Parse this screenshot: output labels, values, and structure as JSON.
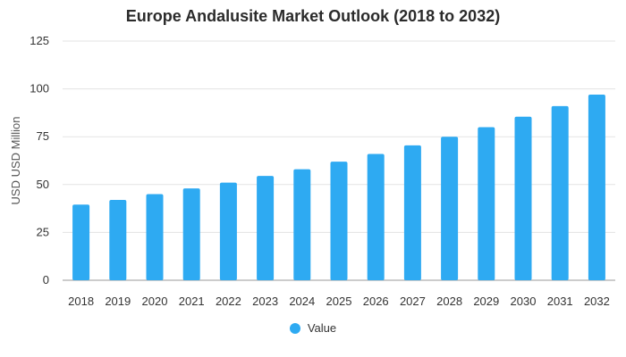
{
  "chart_data": {
    "type": "bar",
    "title": "Europe Andalusite Market Outlook (2018 to 2032)",
    "xlabel": "",
    "ylabel": "USD USD Million",
    "categories": [
      "2018",
      "2019",
      "2020",
      "2021",
      "2022",
      "2023",
      "2024",
      "2025",
      "2026",
      "2027",
      "2028",
      "2029",
      "2030",
      "2031",
      "2032"
    ],
    "series": [
      {
        "name": "Value",
        "values": [
          39.5,
          42,
          45,
          48,
          51,
          54.5,
          58,
          62,
          66,
          70.5,
          75,
          80,
          85.5,
          91,
          97
        ],
        "color": "#2eaaf2"
      }
    ],
    "ylim": [
      0,
      125
    ],
    "yticks": [
      0,
      25,
      50,
      75,
      100,
      125
    ],
    "grid": true,
    "legend_position": "bottom"
  }
}
